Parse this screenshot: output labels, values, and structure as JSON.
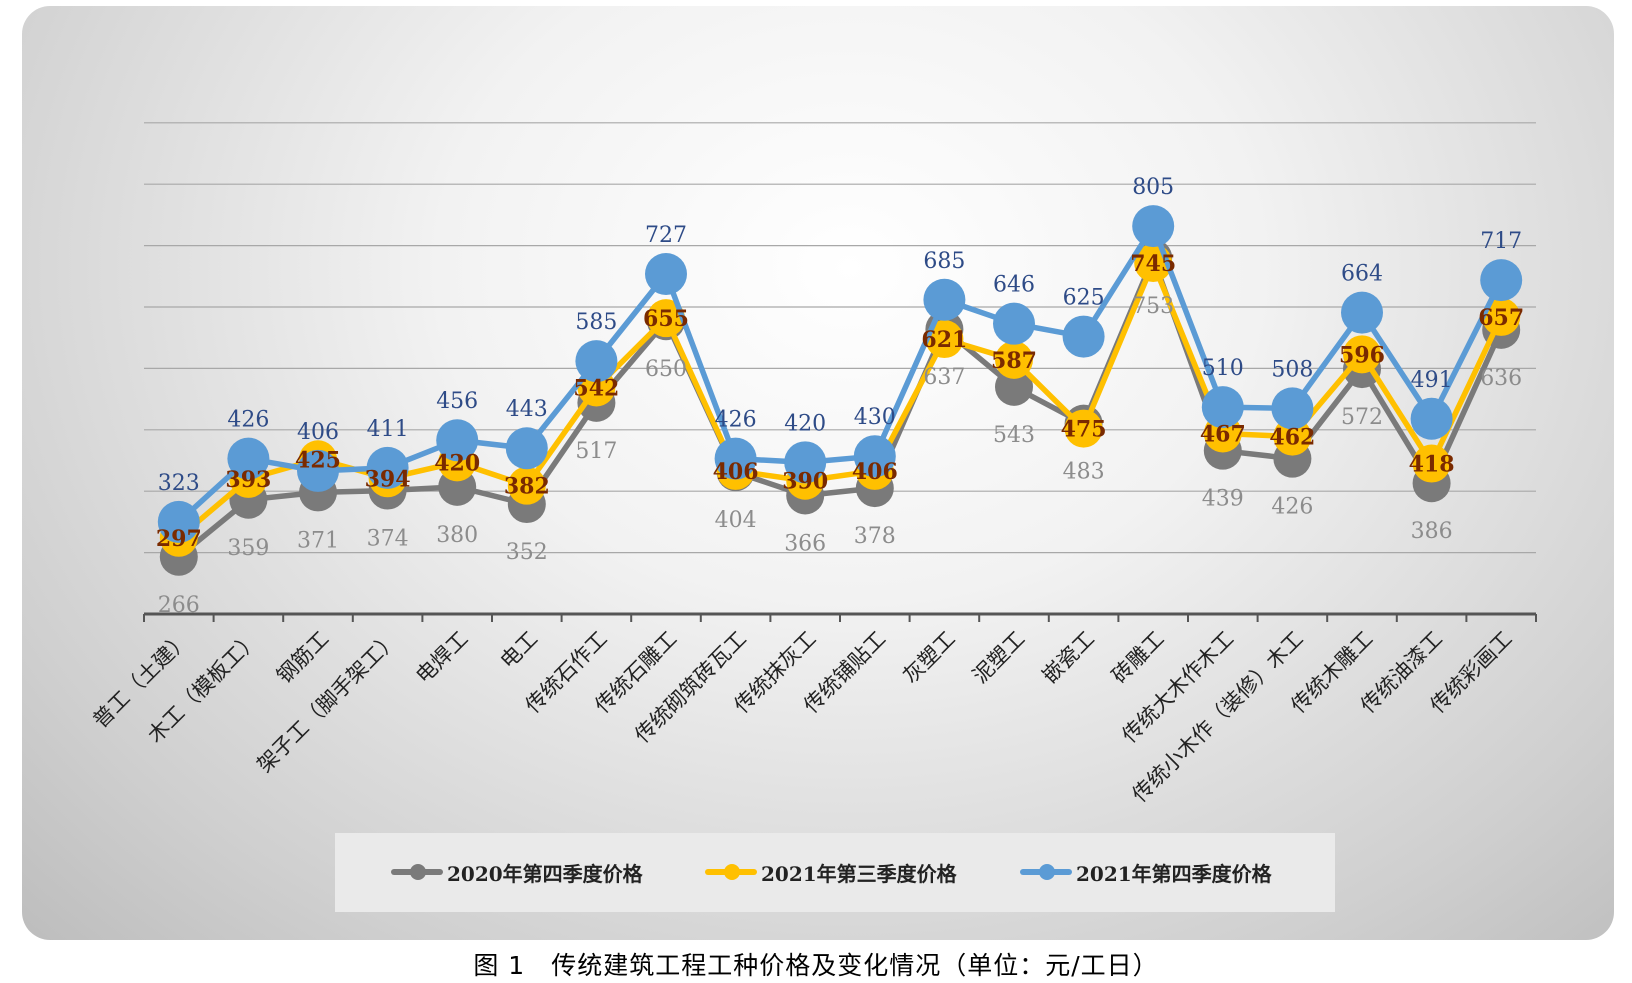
{
  "chart_data": {
    "type": "line",
    "categories": [
      "普工（土建）",
      "木工（模板工）",
      "钢筋工",
      "架子工（脚手架工）",
      "电焊工",
      "电工",
      "传统石作工",
      "传统石雕工",
      "传统砌筑砖瓦工",
      "传统抹灰工",
      "传统铺贴工",
      "灰塑工",
      "泥塑工",
      "嵌瓷工",
      "砖雕工",
      "传统大木作木工",
      "传统小木作（装修）木工",
      "传统木雕工",
      "传统油漆工",
      "传统彩画工"
    ],
    "series": [
      {
        "name": "2020年第四季度价格",
        "color": "#7a7a7a",
        "label_color": "#8c8c8c",
        "values": [
          266,
          359,
          371,
          374,
          380,
          352,
          517,
          650,
          404,
          366,
          378,
          637,
          543,
          483,
          753,
          439,
          426,
          572,
          386,
          636
        ]
      },
      {
        "name": "2021年第三季度价格",
        "color": "#ffc000",
        "label_color": "#7a2a00",
        "values": [
          297,
          393,
          425,
          394,
          420,
          382,
          542,
          655,
          406,
          390,
          406,
          621,
          587,
          475,
          745,
          467,
          462,
          596,
          418,
          657
        ]
      },
      {
        "name": "2021年第四季度价格",
        "color": "#5b9bd5",
        "label_color": "#2e4b87",
        "values": [
          323,
          426,
          406,
          411,
          456,
          443,
          585,
          727,
          426,
          420,
          430,
          685,
          646,
          625,
          805,
          510,
          508,
          664,
          491,
          717
        ]
      }
    ],
    "grid": true,
    "legend": "bottom"
  },
  "caption": "图 1　传统建筑工程工种价格及变化情况（单位：元/工日）"
}
